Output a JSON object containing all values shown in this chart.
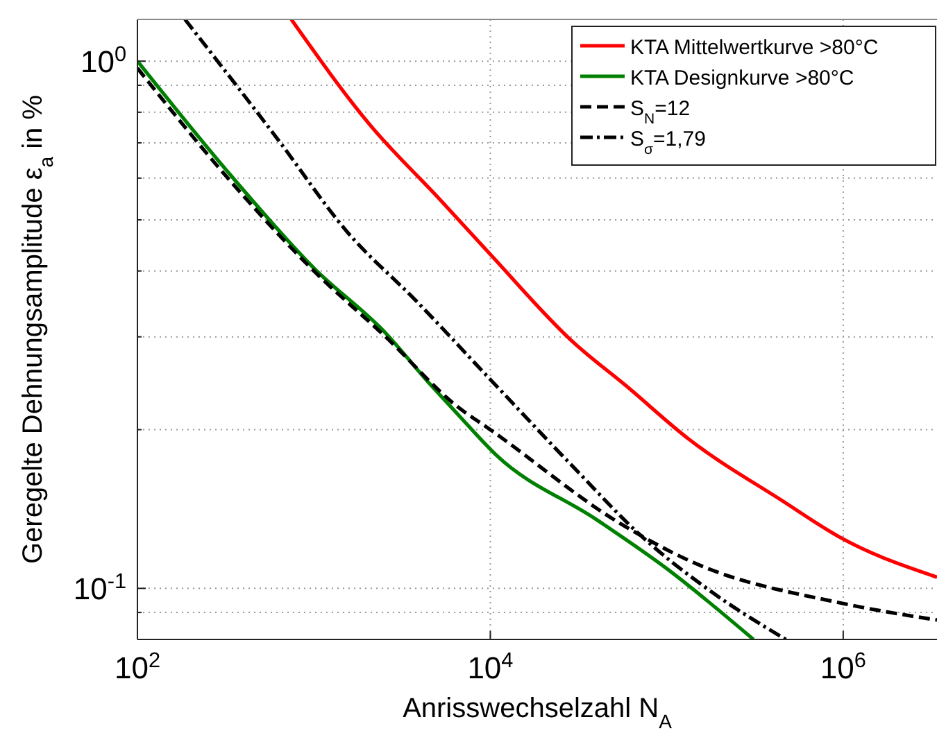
{
  "chart_data": {
    "type": "line",
    "xlabel": "Anrisswechselzahl N$_{A}$",
    "ylabel": "Geregelte Dehnungsamplitude ε$_{a}$ in %",
    "log": "xy",
    "grid": true,
    "legend": "top right",
    "xlim": [
      100,
      3400000
    ],
    "ylim": [
      0.08,
      1.2
    ],
    "xticks": [
      {
        "value": 100,
        "label": "10$^{2}$"
      },
      {
        "value": 10000,
        "label": "10$^{4}$"
      },
      {
        "value": 1000000,
        "label": "10$^{6}$"
      }
    ],
    "yticks": [
      {
        "value": 0.09,
        "label": null
      },
      {
        "value": 0.1,
        "label": "10$^{-1}$"
      },
      {
        "value": 0.2,
        "label": null
      },
      {
        "value": 0.3,
        "label": null
      },
      {
        "value": 0.4,
        "label": null
      },
      {
        "value": 0.5,
        "label": null
      },
      {
        "value": 0.6,
        "label": null
      },
      {
        "value": 0.7,
        "label": null
      },
      {
        "value": 0.8,
        "label": null
      },
      {
        "value": 0.9,
        "label": null
      },
      {
        "value": 1,
        "label": "10$^{0}$"
      }
    ],
    "series": [
      {
        "name": "KTA Mittelwertkurve >80°C",
        "color": "#ff0000",
        "line_style": "solid",
        "x": [
          745,
          2080,
          5140,
          10000,
          29500,
          59000,
          133000,
          446000,
          1000000,
          3400000
        ],
        "values": [
          1.2,
          0.757,
          0.548,
          0.43,
          0.293,
          0.242,
          0.192,
          0.147,
          0.124,
          0.105
        ]
      },
      {
        "name": "KTA Designkurve >80°C",
        "color": "#008000",
        "line_style": "solid",
        "x": [
          100,
          340,
          1000,
          2550,
          4550,
          6530,
          10800,
          40000,
          100000,
          310000
        ],
        "values": [
          1.0,
          0.606,
          0.405,
          0.305,
          0.244,
          0.214,
          0.179,
          0.135,
          0.109,
          0.08
        ]
      },
      {
        "name": "S$_{N}$=12",
        "color": "#000000",
        "line_style": "dashed",
        "x": [
          100,
          340,
          1000,
          2550,
          6530,
          10000,
          54000,
          133000,
          1000000,
          3400000
        ],
        "values": [
          0.97,
          0.59,
          0.4,
          0.3,
          0.221,
          0.2,
          0.133,
          0.113,
          0.0936,
          0.0871
        ]
      },
      {
        "name": "S$_{σ}$=1,79",
        "color": "#000000",
        "line_style": "dashdot",
        "x": [
          186,
          622,
          1540,
          3800,
          10000,
          29500,
          73000,
          180000,
          473000
        ],
        "values": [
          1.2,
          0.712,
          0.475,
          0.351,
          0.249,
          0.17,
          0.125,
          0.0984,
          0.08
        ]
      }
    ]
  }
}
